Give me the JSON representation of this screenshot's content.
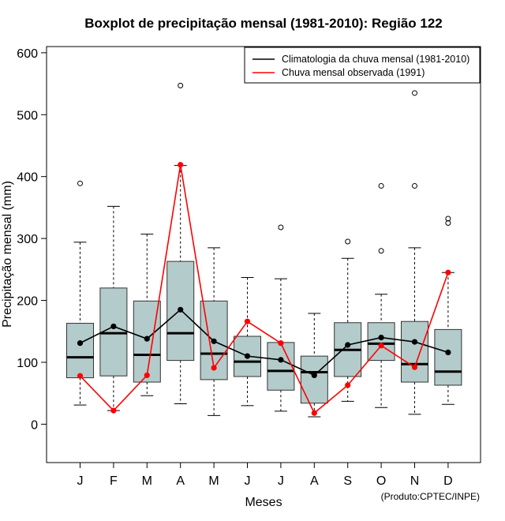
{
  "chart_data": {
    "type": "boxplot",
    "title": "Boxplot de precipitação mensal (1981-2010): Região 122",
    "xlabel": "Meses",
    "ylabel": "Precipitação mensal (mm)",
    "credit": "(Produto:CPTEC/INPE)",
    "ylim": [
      -62,
      610
    ],
    "yticks": [
      0,
      100,
      200,
      300,
      400,
      500,
      600
    ],
    "categories": [
      "J",
      "F",
      "M",
      "A",
      "M",
      "J",
      "J",
      "A",
      "S",
      "O",
      "N",
      "D"
    ],
    "boxes": [
      {
        "whisker_low": 31,
        "q1": 75,
        "median": 108,
        "q3": 163,
        "whisker_high": 294,
        "outliers": [
          389
        ]
      },
      {
        "whisker_low": 22,
        "q1": 78,
        "median": 147,
        "q3": 220,
        "whisker_high": 352,
        "outliers": []
      },
      {
        "whisker_low": 46,
        "q1": 68,
        "median": 112,
        "q3": 199,
        "whisker_high": 307,
        "outliers": []
      },
      {
        "whisker_low": 33,
        "q1": 103,
        "median": 147,
        "q3": 263,
        "whisker_high": 418,
        "outliers": [
          547
        ]
      },
      {
        "whisker_low": 14,
        "q1": 72,
        "median": 114,
        "q3": 199,
        "whisker_high": 285,
        "outliers": []
      },
      {
        "whisker_low": 30,
        "q1": 77,
        "median": 101,
        "q3": 142,
        "whisker_high": 237,
        "outliers": []
      },
      {
        "whisker_low": 21,
        "q1": 55,
        "median": 86,
        "q3": 132,
        "whisker_high": 235,
        "outliers": [
          318
        ]
      },
      {
        "whisker_low": 12,
        "q1": 34,
        "median": 84,
        "q3": 110,
        "whisker_high": 179,
        "outliers": []
      },
      {
        "whisker_low": 37,
        "q1": 77,
        "median": 120,
        "q3": 164,
        "whisker_high": 268,
        "outliers": [
          295
        ]
      },
      {
        "whisker_low": 27,
        "q1": 103,
        "median": 130,
        "q3": 164,
        "whisker_high": 210,
        "outliers": [
          280,
          385
        ]
      },
      {
        "whisker_low": 16,
        "q1": 68,
        "median": 97,
        "q3": 166,
        "whisker_high": 285,
        "outliers": [
          385,
          535
        ]
      },
      {
        "whisker_low": 32,
        "q1": 63,
        "median": 85,
        "q3": 153,
        "whisker_high": 245,
        "outliers": [
          325,
          332
        ]
      }
    ],
    "series": [
      {
        "name": "Climatologia da chuva mensal (1981-2010)",
        "color": "#000000",
        "values": [
          131,
          158,
          138,
          185,
          134,
          110,
          104,
          79,
          128,
          140,
          133,
          116
        ]
      },
      {
        "name": "Chuva mensal observada (1991)",
        "color": "#ff0000",
        "values": [
          78,
          22,
          79,
          419,
          91,
          166,
          131,
          18,
          63,
          127,
          92,
          245
        ]
      }
    ],
    "box_fill": "#b3cbca",
    "legend_position": "top-right"
  }
}
